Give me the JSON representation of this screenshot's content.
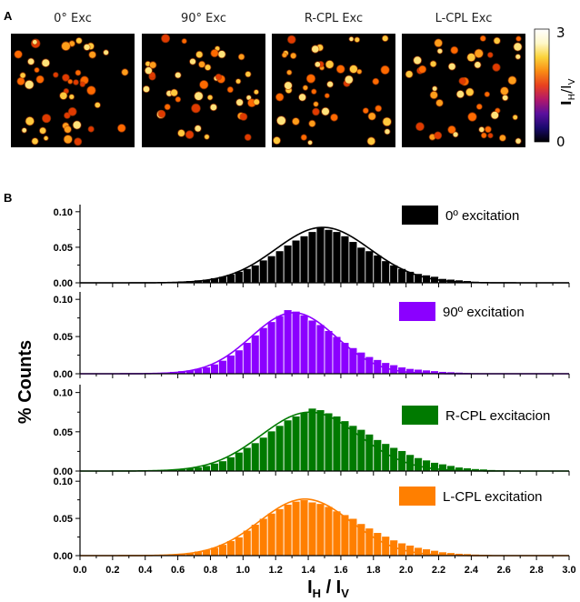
{
  "panel_a": {
    "letter": "A",
    "titles": [
      "0° Exc",
      "90° Exc",
      "R-CPL Exc",
      "L-CPL Exc"
    ],
    "colorbar": {
      "max_label": "3",
      "min_label": "0",
      "label_main": "I",
      "label_sub1": "H",
      "label_sep": "/I",
      "label_sub2": "V"
    }
  },
  "panel_b": {
    "letter": "B"
  },
  "chart_data": {
    "type": "bar",
    "xlabel": {
      "main1": "I",
      "sub1": "H",
      "sep": " / I",
      "sub2": "V"
    },
    "ylabel": "% Counts",
    "xlim": [
      0.0,
      3.0
    ],
    "x_ticks": [
      "0.0",
      "0.2",
      "0.4",
      "0.6",
      "0.8",
      "1.0",
      "1.2",
      "1.4",
      "1.6",
      "1.8",
      "2.0",
      "2.2",
      "2.4",
      "2.6",
      "2.8",
      "3.0"
    ],
    "ylim": [
      0,
      0.11
    ],
    "y_ticks": [
      "0.00",
      "0.05",
      "0.10"
    ],
    "bin_width": 0.05,
    "bin_centers": [
      0.225,
      0.275,
      0.325,
      0.375,
      0.425,
      0.475,
      0.525,
      0.575,
      0.625,
      0.675,
      0.725,
      0.775,
      0.825,
      0.875,
      0.925,
      0.975,
      1.025,
      1.075,
      1.125,
      1.175,
      1.225,
      1.275,
      1.325,
      1.375,
      1.425,
      1.475,
      1.525,
      1.575,
      1.625,
      1.675,
      1.725,
      1.775,
      1.825,
      1.875,
      1.925,
      1.975,
      2.025,
      2.075,
      2.125,
      2.175,
      2.225,
      2.275,
      2.325,
      2.375,
      2.425,
      2.475,
      2.525,
      2.575,
      2.625,
      2.675
    ],
    "series": [
      {
        "name": "0º excitation",
        "color": "#000000",
        "values": [
          0.0003,
          0.0004,
          0.0005,
          0.0006,
          0.0008,
          0.001,
          0.0013,
          0.0018,
          0.0025,
          0.003,
          0.004,
          0.005,
          0.007,
          0.009,
          0.012,
          0.016,
          0.02,
          0.025,
          0.032,
          0.038,
          0.045,
          0.053,
          0.06,
          0.066,
          0.072,
          0.078,
          0.075,
          0.072,
          0.066,
          0.058,
          0.05,
          0.045,
          0.039,
          0.031,
          0.025,
          0.02,
          0.016,
          0.013,
          0.011,
          0.009,
          0.006,
          0.005,
          0.004,
          0.003,
          0.002,
          0.0016,
          0.0012,
          0.0009,
          0.0006,
          0.0004
        ],
        "fit": {
          "amplitude": 0.078,
          "center": 1.49,
          "sigma": 0.29
        }
      },
      {
        "name": "90º excitation",
        "color": "#8b00ff",
        "values": [
          0.0005,
          0.0006,
          0.0008,
          0.001,
          0.0013,
          0.0017,
          0.002,
          0.003,
          0.004,
          0.005,
          0.007,
          0.009,
          0.013,
          0.018,
          0.025,
          0.032,
          0.042,
          0.052,
          0.062,
          0.07,
          0.078,
          0.086,
          0.084,
          0.079,
          0.072,
          0.066,
          0.058,
          0.05,
          0.042,
          0.035,
          0.029,
          0.023,
          0.019,
          0.015,
          0.012,
          0.009,
          0.007,
          0.006,
          0.005,
          0.004,
          0.003,
          0.0025,
          0.002,
          0.0015,
          0.0012,
          0.001,
          0.0008,
          0.0006,
          0.0004,
          0.0003
        ],
        "fit": {
          "amplitude": 0.082,
          "center": 1.31,
          "sigma": 0.26
        }
      },
      {
        "name": "R-CPL excitacion",
        "color": "#007a00",
        "values": [
          0.0003,
          0.0004,
          0.0005,
          0.0007,
          0.0009,
          0.0012,
          0.0016,
          0.002,
          0.003,
          0.004,
          0.005,
          0.007,
          0.01,
          0.013,
          0.018,
          0.024,
          0.03,
          0.036,
          0.043,
          0.051,
          0.058,
          0.065,
          0.07,
          0.075,
          0.08,
          0.078,
          0.074,
          0.07,
          0.064,
          0.058,
          0.053,
          0.047,
          0.04,
          0.035,
          0.03,
          0.026,
          0.021,
          0.017,
          0.014,
          0.011,
          0.009,
          0.007,
          0.005,
          0.004,
          0.003,
          0.0025,
          0.0018,
          0.0013,
          0.0009,
          0.0006
        ],
        "fit": {
          "amplitude": 0.075,
          "center": 1.41,
          "sigma": 0.3
        }
      },
      {
        "name": "L-CPL excitation",
        "color": "#ff7f00",
        "values": [
          0.0003,
          0.0004,
          0.0005,
          0.0007,
          0.0009,
          0.0012,
          0.0016,
          0.002,
          0.003,
          0.004,
          0.006,
          0.008,
          0.011,
          0.015,
          0.02,
          0.025,
          0.034,
          0.042,
          0.05,
          0.057,
          0.063,
          0.069,
          0.073,
          0.075,
          0.072,
          0.07,
          0.066,
          0.06,
          0.055,
          0.05,
          0.043,
          0.037,
          0.031,
          0.026,
          0.021,
          0.017,
          0.014,
          0.011,
          0.009,
          0.007,
          0.005,
          0.004,
          0.003,
          0.0025,
          0.0019,
          0.0014,
          0.001,
          0.0008,
          0.0005,
          0.0003
        ],
        "fit": {
          "amplitude": 0.076,
          "center": 1.38,
          "sigma": 0.28
        }
      }
    ]
  },
  "colors": {
    "bar_edge": "#ffffff",
    "axis": "#000000",
    "image_bg": "#000000",
    "particle_palette": [
      "#ffe27a",
      "#ffc83d",
      "#ff9d1a",
      "#ff6a00",
      "#e03a00"
    ],
    "colorbar_stops": [
      "#000000",
      "#1a0a6e",
      "#5a0f9e",
      "#b2186a",
      "#e8411f",
      "#f98b14",
      "#fbd33a",
      "#fff8c8",
      "#ffffff"
    ]
  }
}
